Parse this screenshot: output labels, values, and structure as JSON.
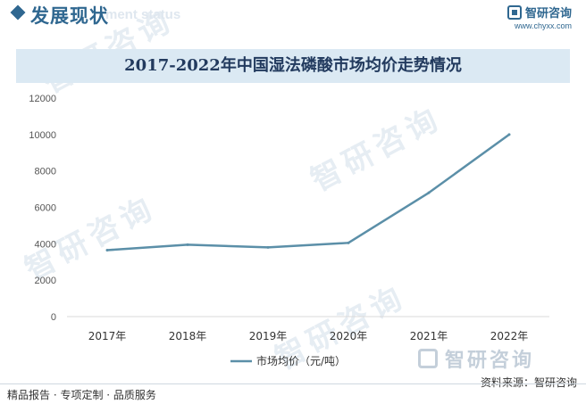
{
  "header": {
    "section_title": "发展现状",
    "section_subtitle": "ment status",
    "logo_name": "智研咨询",
    "logo_url": "www.chyxx.com"
  },
  "chart_data": {
    "type": "line",
    "title": "2017-2022年中国湿法磷酸市场均价走势情况",
    "categories": [
      "2017年",
      "2018年",
      "2019年",
      "2020年",
      "2021年",
      "2022年"
    ],
    "series": [
      {
        "name": "市场均价（元/吨）",
        "values": [
          3650,
          3950,
          3800,
          4050,
          6800,
          10000
        ],
        "color": "#5b8fa8"
      }
    ],
    "yticks": [
      "0",
      "2000",
      "4000",
      "6000",
      "8000",
      "10000",
      "12000"
    ],
    "ylim": [
      0,
      12000
    ],
    "xlabel": "",
    "ylabel": "",
    "grid": false,
    "legend": "bottom-center"
  },
  "watermark": {
    "text": "智研咨询"
  },
  "footer": {
    "left": "精品报告 · 专项定制 · 品质服务",
    "source": "资料来源：智研咨询"
  }
}
